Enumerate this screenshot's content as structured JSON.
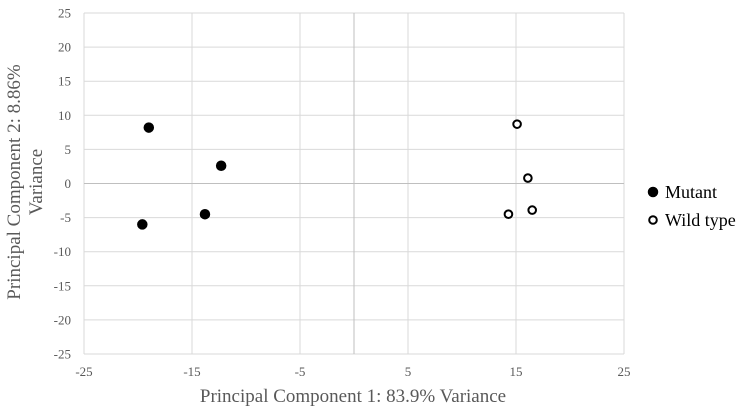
{
  "chart_data": {
    "type": "scatter",
    "xlabel": "Principal Component 1: 83.9% Variance",
    "ylabel": [
      "Principal Component 2: 8.86%",
      "Variance"
    ],
    "xlim": [
      -25,
      25
    ],
    "ylim": [
      -25,
      25
    ],
    "xticks": [
      -25,
      -15,
      -5,
      5,
      15,
      25
    ],
    "yticks": [
      25,
      20,
      15,
      10,
      5,
      0,
      -5,
      -10,
      -15,
      -20,
      -25
    ],
    "grid": true,
    "legend_position": "right",
    "series": [
      {
        "name": "Mutant",
        "marker": "filled-circle",
        "color": "#000000",
        "points": [
          {
            "x": -19,
            "y": 8.2
          },
          {
            "x": -12.3,
            "y": 2.6
          },
          {
            "x": -13.8,
            "y": -4.5
          },
          {
            "x": -19.6,
            "y": -6
          }
        ]
      },
      {
        "name": "Wild type",
        "marker": "open-circle",
        "color": "#000000",
        "points": [
          {
            "x": 15.1,
            "y": 8.7
          },
          {
            "x": 16.1,
            "y": 0.8
          },
          {
            "x": 14.3,
            "y": -4.5
          },
          {
            "x": 16.5,
            "y": -3.9
          }
        ]
      }
    ]
  }
}
